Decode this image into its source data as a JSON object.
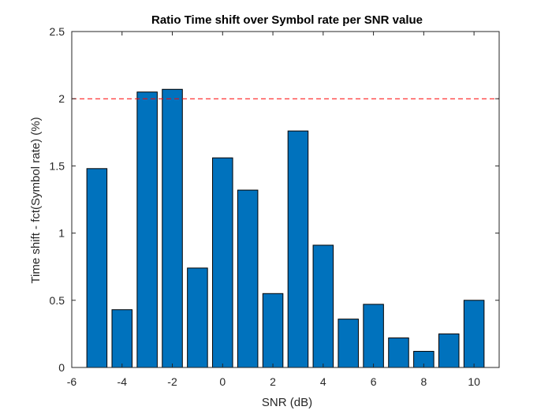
{
  "chart_data": {
    "type": "bar",
    "title": "Ratio Time shift over Symbol rate per SNR value",
    "xlabel": "SNR (dB)",
    "ylabel": "Time shift - fct(Symbol rate) (%)",
    "x": [
      -5,
      -4,
      -3,
      -2,
      -1,
      0,
      1,
      2,
      3,
      4,
      5,
      6,
      7,
      8,
      9,
      10
    ],
    "values": [
      1.48,
      0.43,
      2.05,
      2.07,
      0.74,
      1.56,
      1.32,
      0.55,
      1.76,
      0.91,
      0.36,
      0.47,
      0.22,
      0.12,
      0.25,
      0.5
    ],
    "xlim": [
      -6,
      11
    ],
    "ylim": [
      0,
      2.5
    ],
    "xticks": [
      -6,
      -4,
      -2,
      0,
      2,
      4,
      6,
      8,
      10
    ],
    "xtick_labels": [
      "-6",
      "-4",
      "-2",
      "0",
      "2",
      "4",
      "6",
      "8",
      "10"
    ],
    "yticks": [
      0,
      0.5,
      1,
      1.5,
      2,
      2.5
    ],
    "ytick_labels": [
      "0",
      "0.5",
      "1",
      "1.5",
      "2",
      "2.5"
    ],
    "reference_line": {
      "y": 2,
      "style": "dashed",
      "color": "#ff0000"
    },
    "bar_color": "#0072bd",
    "grid": false,
    "legend": "none"
  }
}
